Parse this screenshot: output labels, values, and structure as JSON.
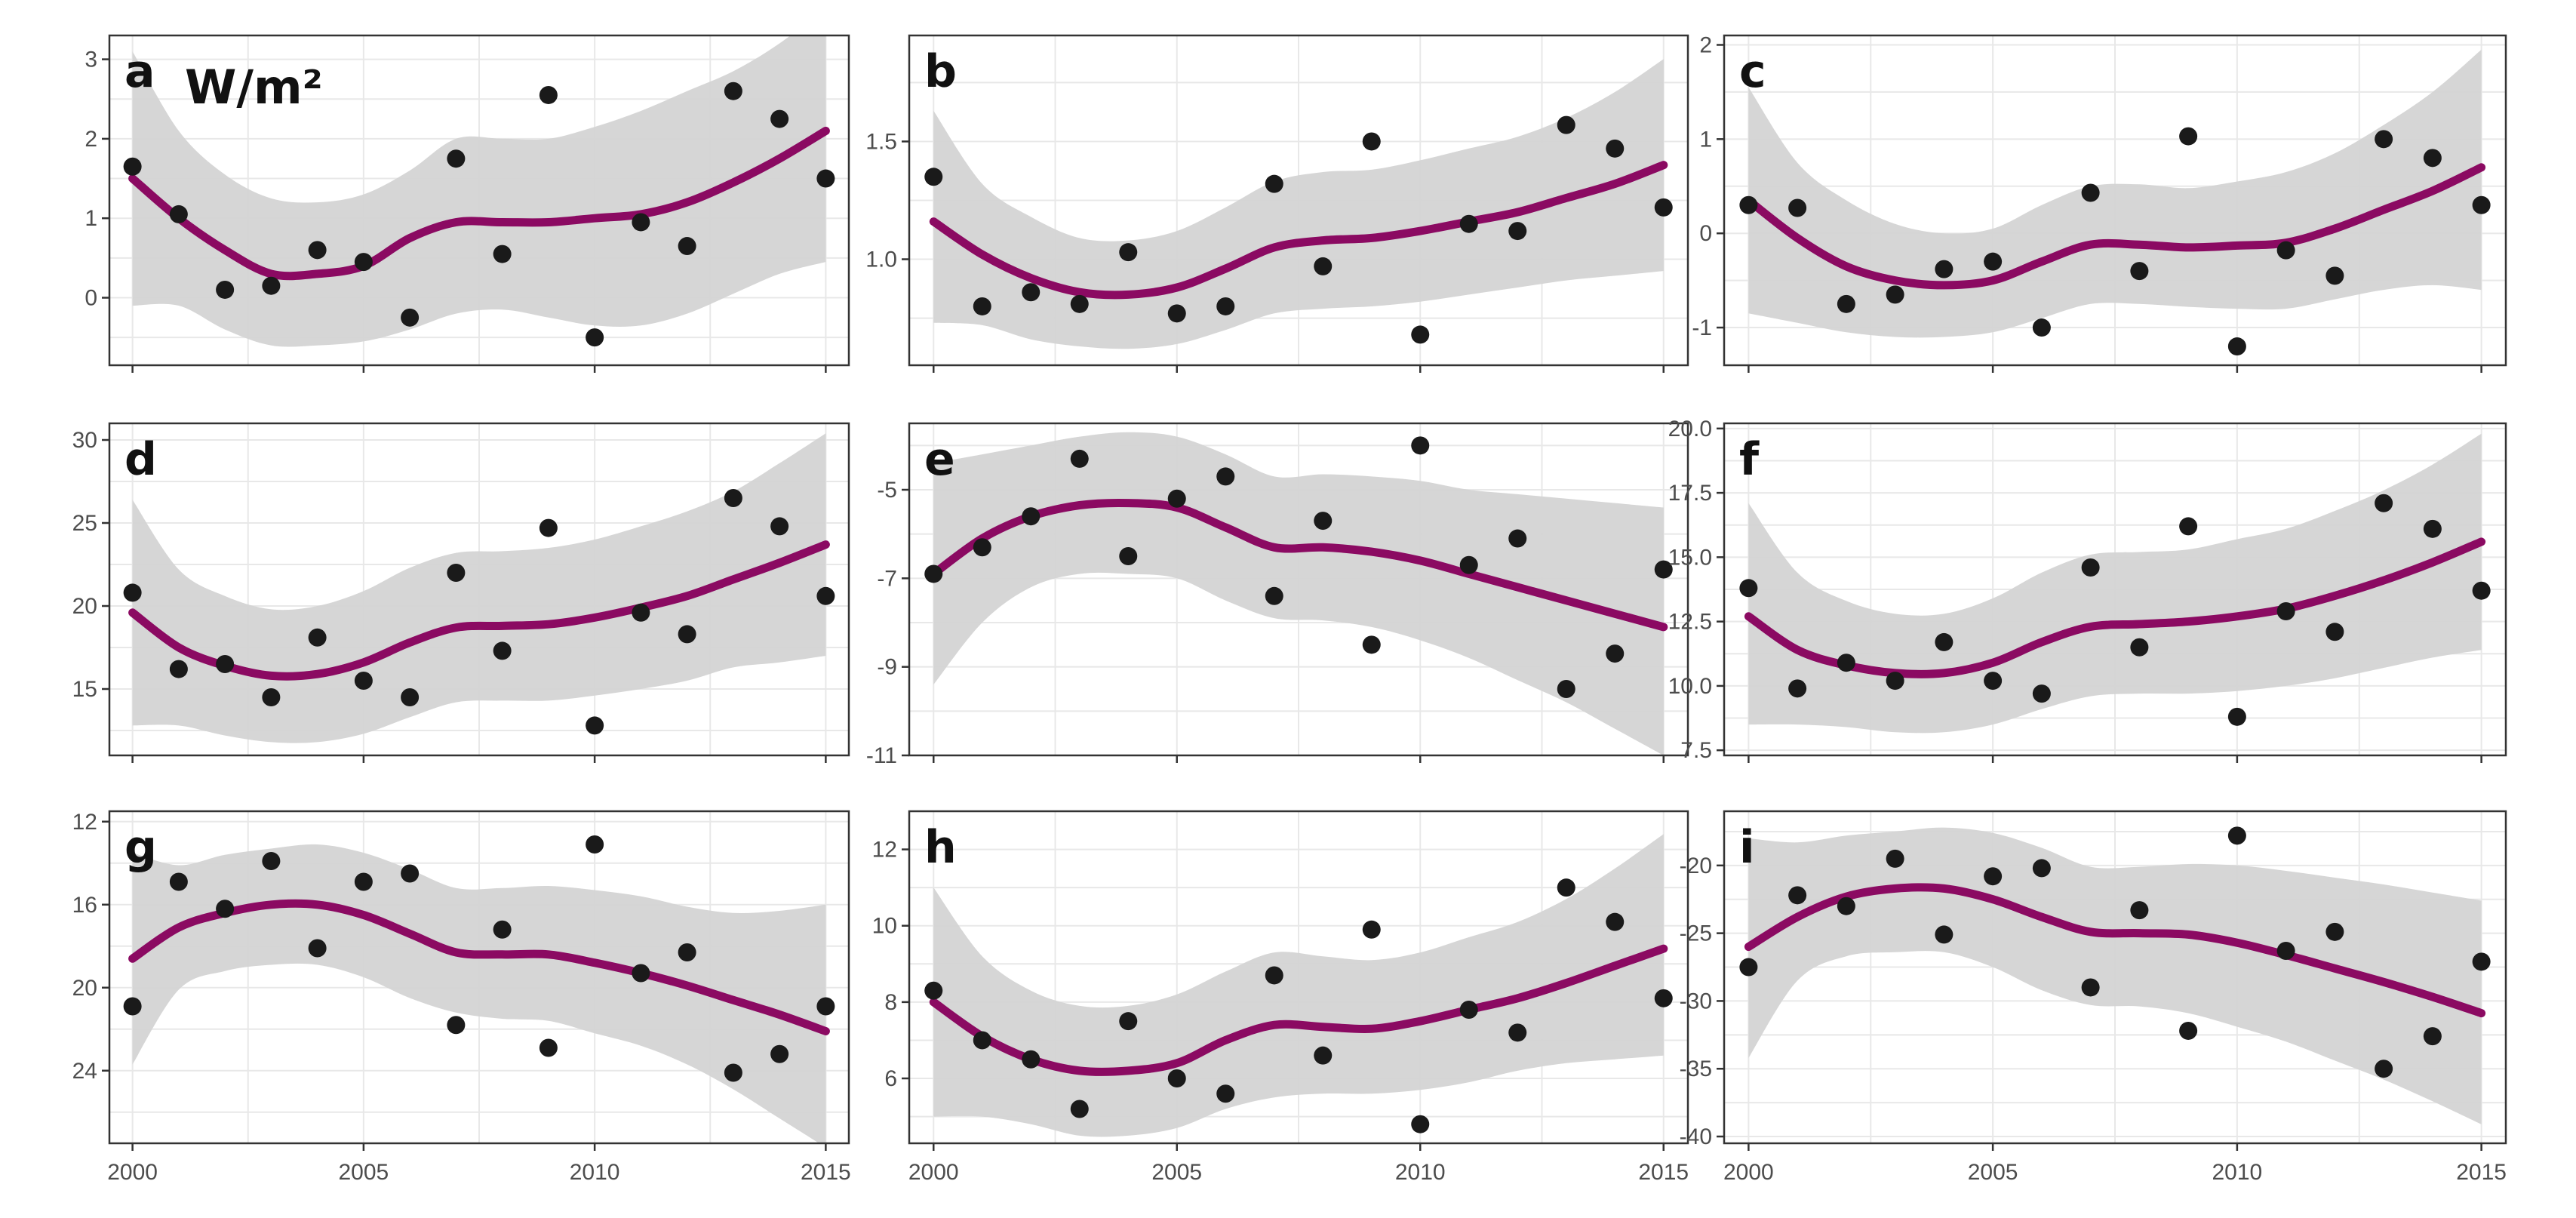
{
  "figure": {
    "unit_label": "W/m²",
    "colors": {
      "background": "#ffffff",
      "grid": "#e8e8e8",
      "frame": "#333333",
      "ribbon": "#d3d3d3",
      "smooth_line": "#8b0a62",
      "points": "#1a1a1a",
      "tick_text": "#4d4d4d"
    }
  },
  "chart_data": [
    {
      "panel": "a",
      "type": "scatter",
      "smooth": "loess",
      "grid": true,
      "xlim": [
        1999.5,
        2015.5
      ],
      "ylim": [
        -0.85,
        3.3
      ],
      "xticks": [
        2000,
        2005,
        2010,
        2015
      ],
      "xticklabels": [],
      "yticks": [
        0,
        1,
        2,
        3
      ],
      "yticklabels": [
        "0",
        "1",
        "2",
        "3"
      ],
      "x": [
        2000,
        2001,
        2002,
        2003,
        2004,
        2005,
        2006,
        2007,
        2008,
        2009,
        2010,
        2011,
        2012,
        2013,
        2014,
        2015
      ],
      "y": [
        1.65,
        1.05,
        0.1,
        0.15,
        0.6,
        0.45,
        -0.25,
        1.75,
        0.55,
        2.55,
        -0.5,
        0.95,
        0.65,
        2.6,
        2.25,
        1.5
      ],
      "fit_x": [
        2000,
        2001,
        2002,
        2003,
        2004,
        2005,
        2006,
        2007,
        2008,
        2009,
        2010,
        2011,
        2012,
        2013,
        2014,
        2015
      ],
      "fit": [
        1.5,
        1.0,
        0.6,
        0.3,
        0.3,
        0.4,
        0.75,
        0.95,
        0.95,
        0.95,
        1.0,
        1.05,
        1.2,
        1.45,
        1.75,
        2.1
      ],
      "fit_lower": [
        -0.1,
        -0.1,
        -0.4,
        -0.6,
        -0.6,
        -0.55,
        -0.4,
        -0.2,
        -0.15,
        -0.25,
        -0.35,
        -0.35,
        -0.2,
        0.05,
        0.3,
        0.45
      ],
      "fit_upper": [
        3.1,
        2.1,
        1.55,
        1.25,
        1.2,
        1.3,
        1.6,
        2.0,
        2.0,
        2.0,
        2.15,
        2.35,
        2.6,
        2.85,
        3.2,
        3.65
      ]
    },
    {
      "panel": "b",
      "type": "scatter",
      "smooth": "loess",
      "grid": true,
      "xlim": [
        1999.5,
        2015.5
      ],
      "ylim": [
        0.55,
        1.95
      ],
      "xticks": [
        2000,
        2005,
        2010,
        2015
      ],
      "xticklabels": [],
      "yticks": [
        1.0,
        1.5
      ],
      "yticklabels": [
        "1.0",
        "1.5"
      ],
      "x": [
        2000,
        2001,
        2002,
        2003,
        2004,
        2005,
        2006,
        2007,
        2008,
        2009,
        2010,
        2011,
        2012,
        2013,
        2014,
        2015
      ],
      "y": [
        1.35,
        0.8,
        0.86,
        0.81,
        1.03,
        0.77,
        0.8,
        1.32,
        0.97,
        1.5,
        0.68,
        1.15,
        1.12,
        1.57,
        1.47,
        1.22
      ],
      "fit_x": [
        2000,
        2001,
        2002,
        2003,
        2004,
        2005,
        2006,
        2007,
        2008,
        2009,
        2010,
        2011,
        2012,
        2013,
        2014,
        2015
      ],
      "fit": [
        1.16,
        1.02,
        0.92,
        0.86,
        0.85,
        0.88,
        0.96,
        1.05,
        1.08,
        1.09,
        1.12,
        1.16,
        1.2,
        1.26,
        1.32,
        1.4
      ],
      "fit_lower": [
        0.73,
        0.72,
        0.66,
        0.63,
        0.62,
        0.64,
        0.7,
        0.77,
        0.79,
        0.8,
        0.82,
        0.85,
        0.88,
        0.91,
        0.93,
        0.95
      ],
      "fit_upper": [
        1.63,
        1.32,
        1.18,
        1.09,
        1.08,
        1.12,
        1.22,
        1.33,
        1.37,
        1.38,
        1.42,
        1.47,
        1.52,
        1.6,
        1.71,
        1.85
      ]
    },
    {
      "panel": "c",
      "type": "scatter",
      "smooth": "loess",
      "grid": true,
      "xlim": [
        1999.5,
        2015.5
      ],
      "ylim": [
        -1.4,
        2.1
      ],
      "xticks": [
        2000,
        2005,
        2010,
        2015
      ],
      "xticklabels": [],
      "yticks": [
        -1,
        0,
        1,
        2
      ],
      "yticklabels": [
        "-1",
        "0",
        "1",
        "2"
      ],
      "x": [
        2000,
        2001,
        2002,
        2003,
        2004,
        2005,
        2006,
        2007,
        2008,
        2009,
        2010,
        2011,
        2012,
        2013,
        2014,
        2015
      ],
      "y": [
        0.3,
        0.27,
        -0.75,
        -0.65,
        -0.38,
        -0.3,
        -1.0,
        0.43,
        -0.4,
        1.03,
        -1.2,
        -0.18,
        -0.45,
        1.0,
        0.8,
        0.3
      ],
      "fit_x": [
        2000,
        2001,
        2002,
        2003,
        2004,
        2005,
        2006,
        2007,
        2008,
        2009,
        2010,
        2011,
        2012,
        2013,
        2014,
        2015
      ],
      "fit": [
        0.35,
        -0.05,
        -0.35,
        -0.5,
        -0.55,
        -0.5,
        -0.3,
        -0.12,
        -0.12,
        -0.15,
        -0.13,
        -0.1,
        0.05,
        0.25,
        0.45,
        0.7
      ],
      "fit_lower": [
        -0.85,
        -0.95,
        -1.05,
        -1.1,
        -1.1,
        -1.05,
        -0.9,
        -0.75,
        -0.75,
        -0.78,
        -0.8,
        -0.8,
        -0.7,
        -0.6,
        -0.55,
        -0.6
      ],
      "fit_upper": [
        1.55,
        0.75,
        0.35,
        0.1,
        0.0,
        0.05,
        0.3,
        0.5,
        0.52,
        0.48,
        0.55,
        0.65,
        0.85,
        1.15,
        1.5,
        1.95
      ]
    },
    {
      "panel": "d",
      "type": "scatter",
      "smooth": "loess",
      "grid": true,
      "xlim": [
        1999.5,
        2015.5
      ],
      "ylim": [
        11.0,
        31.0
      ],
      "xticks": [
        2000,
        2005,
        2010,
        2015
      ],
      "xticklabels": [],
      "yticks": [
        15,
        20,
        25,
        30
      ],
      "yticklabels": [
        "15",
        "20",
        "25",
        "30"
      ],
      "x": [
        2000,
        2001,
        2002,
        2003,
        2004,
        2005,
        2006,
        2007,
        2008,
        2009,
        2010,
        2011,
        2012,
        2013,
        2014,
        2015
      ],
      "y": [
        20.8,
        16.2,
        16.5,
        14.5,
        18.1,
        15.5,
        14.5,
        22.0,
        17.3,
        24.7,
        12.8,
        19.6,
        18.3,
        26.5,
        24.8,
        20.6
      ],
      "fit_x": [
        2000,
        2001,
        2002,
        2003,
        2004,
        2005,
        2006,
        2007,
        2008,
        2009,
        2010,
        2011,
        2012,
        2013,
        2014,
        2015
      ],
      "fit": [
        19.6,
        17.5,
        16.4,
        15.8,
        15.9,
        16.6,
        17.8,
        18.7,
        18.8,
        18.9,
        19.3,
        19.9,
        20.6,
        21.6,
        22.6,
        23.7
      ],
      "fit_lower": [
        12.8,
        12.8,
        12.2,
        11.8,
        11.8,
        12.3,
        13.3,
        14.2,
        14.3,
        14.3,
        14.6,
        15.0,
        15.5,
        16.3,
        16.6,
        17.0
      ],
      "fit_upper": [
        26.4,
        22.2,
        20.6,
        19.8,
        20.0,
        20.9,
        22.3,
        23.2,
        23.3,
        23.5,
        24.0,
        24.8,
        25.7,
        26.9,
        28.6,
        30.4
      ]
    },
    {
      "panel": "e",
      "type": "scatter",
      "smooth": "loess",
      "grid": true,
      "xlim": [
        1999.5,
        2015.5
      ],
      "ylim": [
        -11.0,
        -3.5
      ],
      "xticks": [
        2000,
        2005,
        2010,
        2015
      ],
      "xticklabels": [],
      "yticks": [
        -11,
        -9,
        -7,
        -5
      ],
      "yticklabels": [
        "-11",
        "-9",
        "-7",
        "-5"
      ],
      "x": [
        2000,
        2001,
        2002,
        2003,
        2004,
        2005,
        2006,
        2007,
        2008,
        2009,
        2010,
        2011,
        2012,
        2013,
        2014,
        2015
      ],
      "y": [
        -6.9,
        -6.3,
        -5.6,
        -4.3,
        -6.5,
        -5.2,
        -4.7,
        -7.4,
        -5.7,
        -8.5,
        -4.0,
        -6.7,
        -6.1,
        -9.5,
        -8.7,
        -6.8
      ],
      "fit_x": [
        2000,
        2001,
        2002,
        2003,
        2004,
        2005,
        2006,
        2007,
        2008,
        2009,
        2010,
        2011,
        2012,
        2013,
        2014,
        2015
      ],
      "fit": [
        -6.9,
        -6.1,
        -5.6,
        -5.35,
        -5.3,
        -5.4,
        -5.85,
        -6.3,
        -6.3,
        -6.4,
        -6.6,
        -6.9,
        -7.2,
        -7.5,
        -7.8,
        -8.1
      ],
      "fit_lower": [
        -9.4,
        -8.0,
        -7.2,
        -6.9,
        -6.9,
        -7.0,
        -7.5,
        -7.9,
        -7.95,
        -8.1,
        -8.4,
        -8.8,
        -9.3,
        -9.8,
        -10.4,
        -11.0
      ],
      "fit_upper": [
        -4.4,
        -4.2,
        -4.0,
        -3.8,
        -3.7,
        -3.8,
        -4.2,
        -4.7,
        -4.65,
        -4.7,
        -4.8,
        -5.0,
        -5.1,
        -5.2,
        -5.3,
        -5.4
      ]
    },
    {
      "panel": "f",
      "type": "scatter",
      "smooth": "loess",
      "grid": true,
      "xlim": [
        1999.5,
        2015.5
      ],
      "ylim": [
        7.3,
        20.2
      ],
      "xticks": [
        2000,
        2005,
        2010,
        2015
      ],
      "xticklabels": [],
      "yticks": [
        7.5,
        10.0,
        12.5,
        15.0,
        17.5,
        20.0
      ],
      "yticklabels": [
        "7.5",
        "10.0",
        "12.5",
        "15.0",
        "17.5",
        "20.0"
      ],
      "x": [
        2000,
        2001,
        2002,
        2003,
        2004,
        2005,
        2006,
        2007,
        2008,
        2009,
        2010,
        2011,
        2012,
        2013,
        2014,
        2015
      ],
      "y": [
        13.8,
        9.9,
        10.9,
        10.2,
        11.7,
        10.2,
        9.7,
        14.6,
        11.5,
        16.2,
        8.8,
        12.9,
        12.1,
        17.1,
        16.1,
        13.7
      ],
      "fit_x": [
        2000,
        2001,
        2002,
        2003,
        2004,
        2005,
        2006,
        2007,
        2008,
        2009,
        2010,
        2011,
        2012,
        2013,
        2014,
        2015
      ],
      "fit": [
        12.7,
        11.4,
        10.8,
        10.5,
        10.5,
        10.9,
        11.7,
        12.3,
        12.4,
        12.5,
        12.7,
        13.0,
        13.5,
        14.1,
        14.8,
        15.6
      ],
      "fit_lower": [
        8.5,
        8.5,
        8.4,
        8.2,
        8.2,
        8.5,
        9.1,
        9.6,
        9.7,
        9.7,
        9.8,
        10.0,
        10.3,
        10.7,
        11.1,
        11.4
      ],
      "fit_upper": [
        17.1,
        14.4,
        13.3,
        12.8,
        12.8,
        13.4,
        14.4,
        15.1,
        15.2,
        15.3,
        15.7,
        16.1,
        16.8,
        17.6,
        18.6,
        19.8
      ]
    },
    {
      "panel": "g",
      "type": "scatter",
      "smooth": "loess",
      "grid": true,
      "xlim": [
        1999.5,
        2015.5
      ],
      "ylim": [
        27.5,
        11.5
      ],
      "xticks": [
        2000,
        2005,
        2010,
        2015
      ],
      "xticklabels": [
        "2000",
        "2005",
        "2010",
        "2015"
      ],
      "yticks": [
        12,
        16,
        20,
        24
      ],
      "yticklabels": [
        "12",
        "16",
        "20",
        "24"
      ],
      "x": [
        2000,
        2001,
        2002,
        2003,
        2004,
        2005,
        2006,
        2007,
        2008,
        2009,
        2010,
        2011,
        2012,
        2013,
        2014,
        2015
      ],
      "y": [
        20.9,
        14.9,
        16.2,
        13.9,
        18.1,
        14.9,
        14.5,
        21.8,
        17.2,
        22.9,
        13.1,
        19.3,
        18.3,
        24.1,
        23.2,
        20.9
      ],
      "fit_x": [
        2000,
        2001,
        2002,
        2003,
        2004,
        2005,
        2006,
        2007,
        2008,
        2009,
        2010,
        2011,
        2012,
        2013,
        2014,
        2015
      ],
      "fit": [
        18.6,
        17.1,
        16.4,
        16.0,
        16.0,
        16.5,
        17.4,
        18.3,
        18.4,
        18.4,
        18.8,
        19.3,
        19.9,
        20.6,
        21.3,
        22.1
      ],
      "fit_lower": [
        23.7,
        20.1,
        19.2,
        18.9,
        18.9,
        19.5,
        20.5,
        21.2,
        21.5,
        21.6,
        22.2,
        22.8,
        23.7,
        24.9,
        26.3,
        27.7
      ],
      "fit_upper": [
        13.5,
        14.1,
        13.6,
        13.3,
        13.1,
        13.5,
        14.3,
        15.2,
        15.2,
        15.1,
        15.3,
        15.6,
        16.1,
        16.4,
        16.3,
        16.0
      ]
    },
    {
      "panel": "h",
      "type": "scatter",
      "smooth": "loess",
      "grid": true,
      "xlim": [
        1999.5,
        2015.5
      ],
      "ylim": [
        4.3,
        13.0
      ],
      "xticks": [
        2000,
        2005,
        2010,
        2015
      ],
      "xticklabels": [
        "2000",
        "2005",
        "2010",
        "2015"
      ],
      "yticks": [
        6,
        8,
        10,
        12
      ],
      "yticklabels": [
        "6",
        "8",
        "10",
        "12"
      ],
      "x": [
        2000,
        2001,
        2002,
        2003,
        2004,
        2005,
        2006,
        2007,
        2008,
        2009,
        2010,
        2011,
        2012,
        2013,
        2014,
        2015
      ],
      "y": [
        8.3,
        7.0,
        6.5,
        5.2,
        7.5,
        6.0,
        5.6,
        8.7,
        6.6,
        9.9,
        4.8,
        7.8,
        7.2,
        11.0,
        10.1,
        8.1
      ],
      "fit_x": [
        2000,
        2001,
        2002,
        2003,
        2004,
        2005,
        2006,
        2007,
        2008,
        2009,
        2010,
        2011,
        2012,
        2013,
        2014,
        2015
      ],
      "fit": [
        8.0,
        7.1,
        6.5,
        6.2,
        6.2,
        6.4,
        7.0,
        7.4,
        7.35,
        7.3,
        7.5,
        7.8,
        8.1,
        8.5,
        8.95,
        9.4
      ],
      "fit_lower": [
        5.0,
        5.0,
        4.8,
        4.5,
        4.5,
        4.7,
        5.2,
        5.5,
        5.6,
        5.6,
        5.7,
        5.9,
        6.2,
        6.4,
        6.5,
        6.6
      ],
      "fit_upper": [
        11.0,
        9.2,
        8.3,
        7.9,
        7.9,
        8.2,
        8.8,
        9.3,
        9.2,
        9.1,
        9.3,
        9.7,
        10.1,
        10.7,
        11.5,
        12.4
      ]
    },
    {
      "panel": "i",
      "type": "scatter",
      "smooth": "loess",
      "grid": true,
      "xlim": [
        1999.5,
        2015.5
      ],
      "ylim": [
        -40.5,
        -16.0
      ],
      "xticks": [
        2000,
        2005,
        2010,
        2015
      ],
      "xticklabels": [
        "2000",
        "2005",
        "2010",
        "2015"
      ],
      "yticks": [
        -40,
        -35,
        -30,
        -25,
        -20
      ],
      "yticklabels": [
        "-40",
        "-35",
        "-30",
        "-25",
        "-20"
      ],
      "x": [
        2000,
        2001,
        2002,
        2003,
        2004,
        2005,
        2006,
        2007,
        2008,
        2009,
        2010,
        2011,
        2012,
        2013,
        2014,
        2015
      ],
      "y": [
        -27.5,
        -22.2,
        -23.0,
        -19.5,
        -25.1,
        -20.8,
        -20.2,
        -29.0,
        -23.3,
        -32.2,
        -17.8,
        -26.3,
        -24.9,
        -35.0,
        -32.6,
        -27.1
      ],
      "fit_x": [
        2000,
        2001,
        2002,
        2003,
        2004,
        2005,
        2006,
        2007,
        2008,
        2009,
        2010,
        2011,
        2012,
        2013,
        2014,
        2015
      ],
      "fit": [
        -26.0,
        -23.8,
        -22.3,
        -21.7,
        -21.7,
        -22.5,
        -23.8,
        -24.9,
        -25.0,
        -25.1,
        -25.7,
        -26.6,
        -27.6,
        -28.6,
        -29.7,
        -30.9
      ],
      "fit_lower": [
        -34.2,
        -28.5,
        -26.7,
        -26.4,
        -26.4,
        -27.5,
        -29.2,
        -30.3,
        -30.4,
        -30.9,
        -31.9,
        -33.0,
        -34.4,
        -35.8,
        -37.4,
        -39.1
      ],
      "fit_upper": [
        -18.0,
        -18.3,
        -17.8,
        -17.5,
        -17.2,
        -17.6,
        -18.7,
        -20.1,
        -20.1,
        -19.9,
        -20.0,
        -20.4,
        -20.9,
        -21.4,
        -22.0,
        -22.6
      ]
    }
  ]
}
